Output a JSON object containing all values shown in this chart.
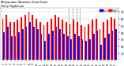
{
  "title": "Milwaukee Weather Dew Point",
  "subtitle": "Daily High/Low",
  "background_color": "#ffffff",
  "plot_bg_color": "#ffffff",
  "high_color": "#ff0000",
  "low_color": "#0000ff",
  "ylim": [
    0,
    75
  ],
  "yticks": [
    10,
    20,
    30,
    40,
    50,
    60,
    70
  ],
  "days": [
    1,
    2,
    3,
    4,
    5,
    6,
    7,
    8,
    9,
    10,
    11,
    12,
    13,
    14,
    15,
    16,
    17,
    18,
    19,
    20,
    21,
    22,
    23,
    24,
    25,
    26,
    27,
    28,
    29,
    30,
    31
  ],
  "highs": [
    60,
    65,
    55,
    55,
    58,
    62,
    65,
    70,
    65,
    60,
    55,
    50,
    55,
    60,
    65,
    62,
    58,
    55,
    52,
    58,
    55,
    50,
    48,
    52,
    58,
    60,
    45,
    55,
    58,
    62,
    60
  ],
  "lows": [
    40,
    48,
    35,
    35,
    40,
    45,
    48,
    55,
    48,
    45,
    38,
    28,
    38,
    42,
    48,
    45,
    38,
    35,
    30,
    38,
    35,
    30,
    28,
    30,
    38,
    42,
    22,
    32,
    38,
    42,
    45
  ],
  "dashed_cols": [
    18,
    19,
    20,
    21
  ],
  "bar_width": 0.38,
  "tick_fontsize": 2.5,
  "legend_fontsize": 2.2
}
